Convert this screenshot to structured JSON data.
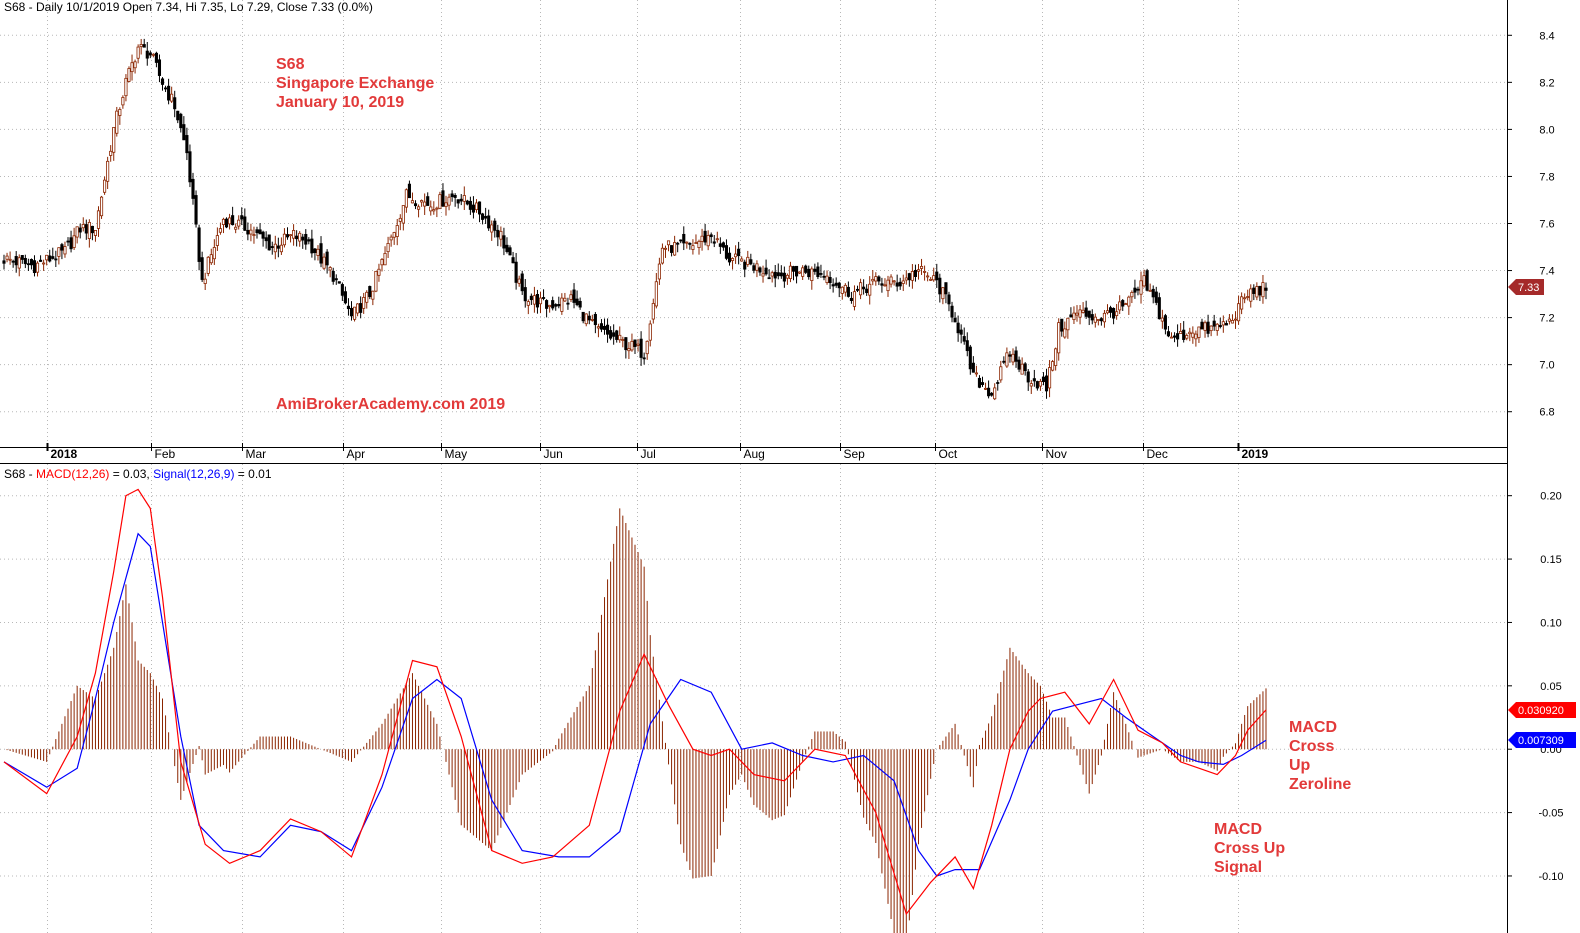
{
  "header": {
    "price": "S68 - Daily 10/1/2019 Open 7.34, Hi 7.35, Lo 7.29, Close 7.33 (0.0%)",
    "macd_prefix": "S68 - ",
    "macd_label": "MACD(12,26)",
    "macd_value": " = 0.03, ",
    "signal_label": "Signal(12,26,9)",
    "signal_value": " = 0.01"
  },
  "annotations": {
    "title_lines": [
      "S68",
      "Singapore Exchange",
      "January 10, 2019"
    ],
    "watermark": "AmiBrokerAcademy.com  2019",
    "note_zeroline": [
      "MACD",
      "Cross",
      "Up",
      "Zeroline"
    ],
    "note_signal": [
      "MACD",
      "Cross Up",
      "Signal"
    ]
  },
  "colors": {
    "up_candle": "#8b2500",
    "down_candle": "#000000",
    "macd": "#ff0000",
    "signal": "#0000ff",
    "histogram": "#8b2500",
    "annotation": "#e23a3a"
  },
  "chart_data": [
    {
      "type": "candlestick",
      "title": "S68 - Daily",
      "ylim": [
        6.65,
        8.55
      ],
      "y_ticks": [
        "8.4",
        "8.2",
        "8.0",
        "7.8",
        "7.6",
        "7.4",
        "7.2",
        "7.0",
        "6.8"
      ],
      "x_labels": [
        "2018",
        "Feb",
        "Mar",
        "Apr",
        "May",
        "Jun",
        "Jul",
        "Aug",
        "Sep",
        "Oct",
        "Nov",
        "Dec",
        "2019"
      ],
      "grid": true,
      "last_close": "7.33",
      "close_path": [
        [
          0,
          7.45
        ],
        [
          10,
          7.42
        ],
        [
          20,
          7.48
        ],
        [
          25,
          7.58
        ],
        [
          30,
          7.58
        ],
        [
          36,
          8.0
        ],
        [
          40,
          8.2
        ],
        [
          44,
          8.35
        ],
        [
          48,
          8.32
        ],
        [
          52,
          8.2
        ],
        [
          56,
          8.1
        ],
        [
          60,
          7.9
        ],
        [
          65,
          7.35
        ],
        [
          72,
          7.62
        ],
        [
          80,
          7.58
        ],
        [
          88,
          7.5
        ],
        [
          95,
          7.55
        ],
        [
          100,
          7.52
        ],
        [
          108,
          7.38
        ],
        [
          114,
          7.2
        ],
        [
          120,
          7.3
        ],
        [
          126,
          7.5
        ],
        [
          132,
          7.72
        ],
        [
          140,
          7.68
        ],
        [
          148,
          7.72
        ],
        [
          156,
          7.65
        ],
        [
          163,
          7.55
        ],
        [
          170,
          7.3
        ],
        [
          178,
          7.25
        ],
        [
          186,
          7.28
        ],
        [
          194,
          7.15
        ],
        [
          202,
          7.1
        ],
        [
          210,
          7.05
        ],
        [
          216,
          7.5
        ],
        [
          224,
          7.5
        ],
        [
          232,
          7.55
        ],
        [
          238,
          7.45
        ],
        [
          246,
          7.42
        ],
        [
          254,
          7.38
        ],
        [
          262,
          7.4
        ],
        [
          270,
          7.38
        ],
        [
          278,
          7.3
        ],
        [
          286,
          7.35
        ],
        [
          294,
          7.35
        ],
        [
          300,
          7.4
        ],
        [
          306,
          7.35
        ],
        [
          312,
          7.2
        ],
        [
          318,
          6.95
        ],
        [
          324,
          6.88
        ],
        [
          330,
          7.05
        ],
        [
          336,
          6.95
        ],
        [
          342,
          6.9
        ],
        [
          346,
          7.15
        ],
        [
          352,
          7.22
        ],
        [
          360,
          7.2
        ],
        [
          368,
          7.25
        ],
        [
          374,
          7.35
        ],
        [
          378,
          7.25
        ],
        [
          383,
          7.1
        ],
        [
          390,
          7.15
        ],
        [
          396,
          7.15
        ],
        [
          402,
          7.18
        ],
        [
          408,
          7.3
        ],
        [
          414,
          7.33
        ]
      ]
    },
    {
      "type": "line",
      "title": "MACD(12,26), Signal(12,26,9)",
      "ylim": [
        -0.145,
        0.225
      ],
      "y_ticks": [
        "0.20",
        "0.15",
        "0.10",
        "0.05",
        "0.00",
        "-0.05",
        "-0.10"
      ],
      "price_labels": {
        "macd": "0.030920",
        "signal": "0.007309"
      },
      "histogram": true,
      "series": [
        {
          "name": "MACD(12,26)",
          "x": [
            0,
            14,
            24,
            30,
            36,
            40,
            44,
            48,
            52,
            58,
            66,
            74,
            84,
            94,
            104,
            114,
            124,
            134,
            142,
            150,
            160,
            170,
            180,
            192,
            202,
            210,
            218,
            226,
            232,
            238,
            246,
            256,
            266,
            276,
            286,
            296,
            304,
            312,
            318,
            324,
            330,
            336,
            340,
            348,
            356,
            364,
            372,
            380,
            386,
            392,
            398,
            404,
            408,
            414
          ],
          "values": [
            -0.01,
            -0.035,
            0.01,
            0.06,
            0.14,
            0.2,
            0.205,
            0.19,
            0.12,
            -0.01,
            -0.075,
            -0.09,
            -0.08,
            -0.055,
            -0.065,
            -0.085,
            -0.02,
            0.07,
            0.065,
            0.01,
            -0.08,
            -0.09,
            -0.085,
            -0.06,
            0.03,
            0.075,
            0.035,
            0.0,
            -0.005,
            0.0,
            -0.02,
            -0.025,
            0.0,
            -0.005,
            -0.05,
            -0.13,
            -0.105,
            -0.085,
            -0.11,
            -0.06,
            0.0,
            0.03,
            0.04,
            0.045,
            0.02,
            0.055,
            0.015,
            0.005,
            -0.01,
            -0.015,
            -0.02,
            -0.005,
            0.015,
            0.031
          ]
        },
        {
          "name": "Signal(12,26,9)",
          "x": [
            0,
            14,
            24,
            30,
            36,
            44,
            48,
            52,
            58,
            64,
            72,
            84,
            94,
            104,
            114,
            124,
            134,
            142,
            150,
            160,
            170,
            182,
            192,
            202,
            212,
            222,
            232,
            242,
            252,
            262,
            272,
            282,
            292,
            300,
            306,
            312,
            320,
            330,
            336,
            344,
            352,
            360,
            368,
            374,
            380,
            386,
            392,
            400,
            406,
            414
          ],
          "values": [
            -0.01,
            -0.03,
            -0.015,
            0.04,
            0.1,
            0.17,
            0.16,
            0.1,
            0.01,
            -0.06,
            -0.08,
            -0.085,
            -0.06,
            -0.065,
            -0.08,
            -0.03,
            0.04,
            0.055,
            0.04,
            -0.04,
            -0.08,
            -0.085,
            -0.085,
            -0.065,
            0.02,
            0.055,
            0.045,
            0.0,
            0.005,
            -0.005,
            -0.01,
            -0.005,
            -0.025,
            -0.08,
            -0.1,
            -0.095,
            -0.095,
            -0.04,
            0.0,
            0.03,
            0.035,
            0.04,
            0.025,
            0.015,
            0.005,
            -0.005,
            -0.01,
            -0.012,
            -0.005,
            0.007
          ]
        }
      ]
    }
  ]
}
